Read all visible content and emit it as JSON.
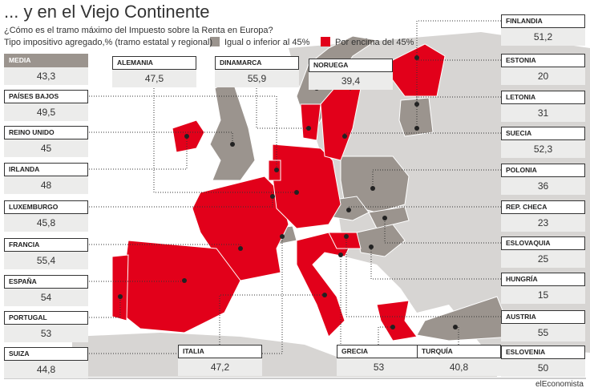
{
  "header": {
    "title": "... y en el Viejo Continente",
    "subtitle": "¿Cómo es el tramo máximo del Impuesto sobre la Renta en Europa?",
    "unit_note": "Tipo impositivo agregado,% (tramo estatal y regional)"
  },
  "legend": [
    {
      "label": "Igual o inferior al 45%",
      "color": "#9b948e"
    },
    {
      "label": "Por encima del 45%",
      "color": "#e2001a"
    }
  ],
  "average": {
    "label": "MEDIA",
    "value": "43,3"
  },
  "countries": [
    {
      "name": "PAÍSES BAJOS",
      "value": "49,5"
    },
    {
      "name": "REINO UNIDO",
      "value": "45"
    },
    {
      "name": "IRLANDA",
      "value": "48"
    },
    {
      "name": "LUXEMBURGO",
      "value": "45,8"
    },
    {
      "name": "FRANCIA",
      "value": "55,4"
    },
    {
      "name": "ESPAÑA",
      "value": "54"
    },
    {
      "name": "PORTUGAL",
      "value": "53"
    },
    {
      "name": "SUIZA",
      "value": "44,8"
    },
    {
      "name": "ALEMANIA",
      "value": "47,5"
    },
    {
      "name": "DINAMARCA",
      "value": "55,9"
    },
    {
      "name": "NORUEGA",
      "value": "39,4"
    },
    {
      "name": "FINLANDIA",
      "value": "51,2"
    },
    {
      "name": "ESTONIA",
      "value": "20"
    },
    {
      "name": "LETONIA",
      "value": "31"
    },
    {
      "name": "SUECIA",
      "value": "52,3"
    },
    {
      "name": "POLONIA",
      "value": "36"
    },
    {
      "name": "REP. CHECA",
      "value": "23"
    },
    {
      "name": "ESLOVAQUIA",
      "value": "25"
    },
    {
      "name": "HUNGRÍA",
      "value": "15"
    },
    {
      "name": "AUSTRIA",
      "value": "55"
    },
    {
      "name": "ESLOVENIA",
      "value": "50"
    },
    {
      "name": "ITALIA",
      "value": "47,2"
    },
    {
      "name": "GRECIA",
      "value": "53"
    },
    {
      "name": "TURQUÍA",
      "value": "40,8"
    }
  ],
  "source": "elEconomista"
}
